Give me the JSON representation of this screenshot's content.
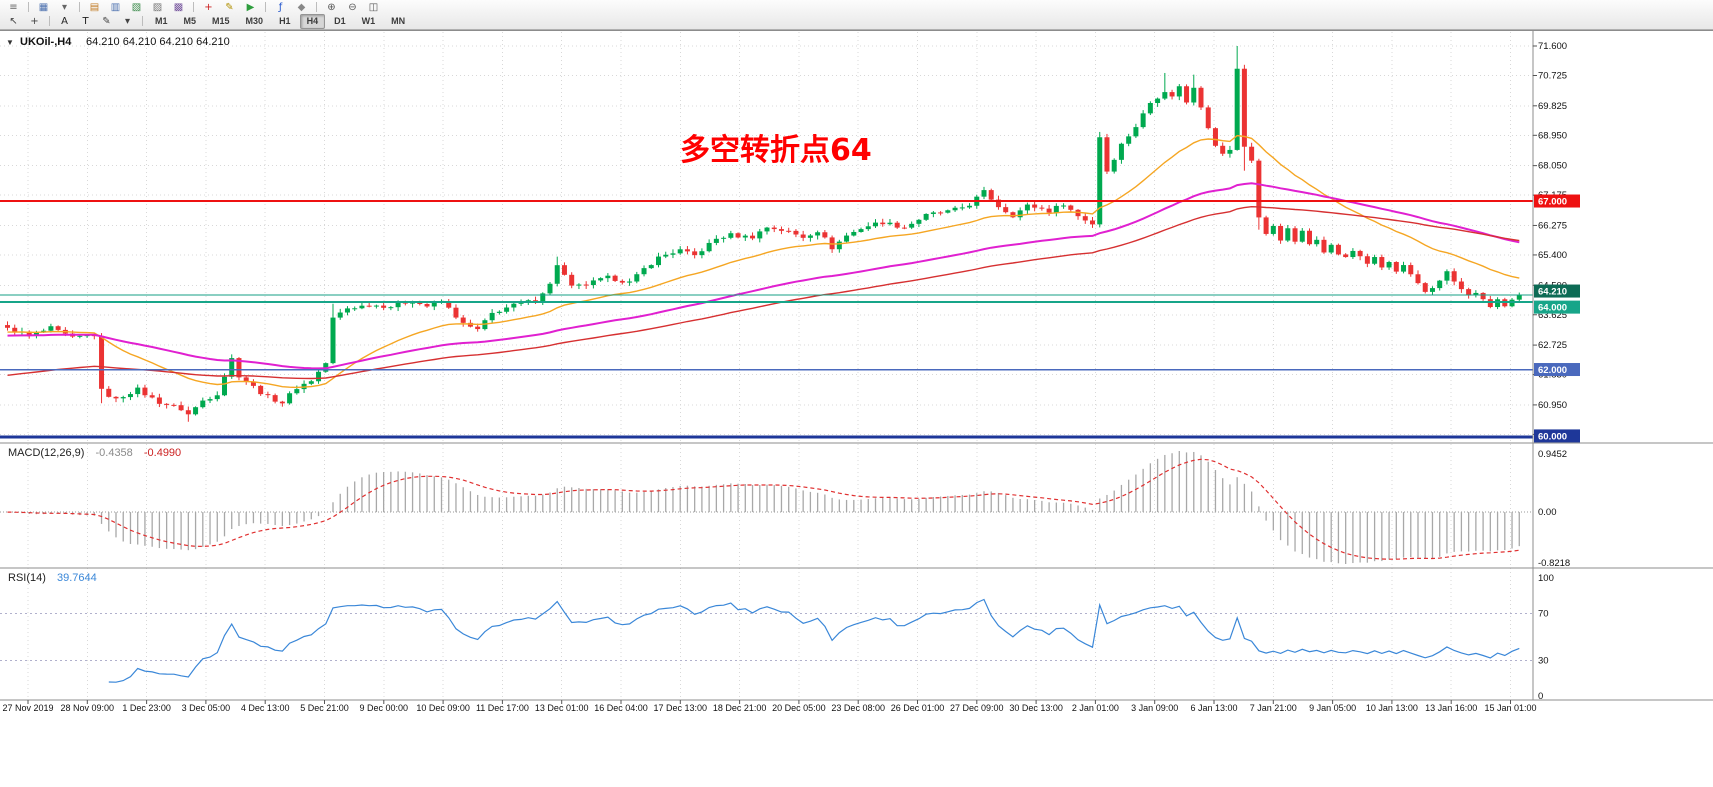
{
  "toolbar": {
    "row1_icons": [
      {
        "name": "menu-icon",
        "glyph": "≡",
        "color": "#666"
      },
      {
        "sep": true
      },
      {
        "name": "new-chart-icon",
        "glyph": "▦",
        "color": "#4a6fae"
      },
      {
        "name": "profiles-dropdown-icon",
        "glyph": "▾",
        "color": "#666"
      },
      {
        "sep": true
      },
      {
        "name": "market-watch-icon",
        "glyph": "▤",
        "color": "#c07820"
      },
      {
        "name": "data-window-icon",
        "glyph": "▥",
        "color": "#4a6fae"
      },
      {
        "name": "navigator-icon",
        "glyph": "▧",
        "color": "#3a8a4a"
      },
      {
        "name": "terminal-icon",
        "glyph": "▨",
        "color": "#777"
      },
      {
        "name": "strategy-tester-icon",
        "glyph": "▩",
        "color": "#7a5aa0"
      },
      {
        "sep": true
      },
      {
        "name": "new-order-icon",
        "glyph": "+",
        "color": "#cc2222"
      },
      {
        "name": "metaeditor-icon",
        "glyph": "✎",
        "color": "#b09000"
      },
      {
        "name": "autotrading-icon",
        "glyph": "▶",
        "color": "#2e9e3e"
      },
      {
        "sep": true
      },
      {
        "name": "add-indicator-icon",
        "glyph": "ƒ",
        "color": "#2255cc"
      },
      {
        "name": "objects-list-icon",
        "glyph": "◆",
        "color": "#888"
      },
      {
        "sep": true
      },
      {
        "name": "zoom-in-icon",
        "glyph": "⊕",
        "color": "#555"
      },
      {
        "name": "zoom-out-icon",
        "glyph": "⊖",
        "color": "#555"
      },
      {
        "name": "tile-windows-icon",
        "glyph": "◫",
        "color": "#555"
      }
    ],
    "row2_tools": [
      {
        "name": "cursor-icon",
        "glyph": "↖",
        "color": "#444"
      },
      {
        "name": "crosshair-icon",
        "glyph": "+",
        "color": "#444"
      },
      {
        "sep": true
      },
      {
        "name": "text-tool-button",
        "glyph": "A",
        "color": "#222"
      },
      {
        "name": "text-label-tool-button",
        "glyph": "T",
        "color": "#222"
      },
      {
        "name": "draw-tools-icon",
        "glyph": "✎",
        "color": "#444"
      },
      {
        "name": "draw-tools-dropdown-icon",
        "glyph": "▾",
        "color": "#444"
      },
      {
        "sep": true
      }
    ],
    "timeframes": {
      "items": [
        "M1",
        "M5",
        "M15",
        "M30",
        "H1",
        "H4",
        "D1",
        "W1",
        "MN"
      ],
      "active": "H4"
    }
  },
  "chart": {
    "title": {
      "collapse_glyph": "▼",
      "symbol": "UKOil-,H4",
      "ohlc": "64.210 64.210 64.210 64.210"
    },
    "annotation": {
      "text": "多空转折点64",
      "color": "#FF0000"
    },
    "colors": {
      "up": "#00a94f",
      "down": "#eb3333",
      "grid": "#d8d8d8",
      "separator": "#8c8c8c",
      "axis_text": "#111111"
    },
    "price_axis": {
      "tick_values": [
        71.6,
        70.725,
        69.825,
        68.95,
        68.05,
        67.175,
        66.275,
        65.4,
        64.5,
        63.625,
        62.725,
        61.85,
        60.95,
        60.075
      ]
    },
    "time_axis": {
      "labels": [
        "27 Nov 2019",
        "28 Nov 09:00",
        "1 Dec 23:00",
        "3 Dec 05:00",
        "4 Dec 13:00",
        "5 Dec 21:00",
        "9 Dec 00:00",
        "10 Dec 09:00",
        "11 Dec 17:00",
        "13 Dec 01:00",
        "16 Dec 04:00",
        "17 Dec 13:00",
        "18 Dec 21:00",
        "20 Dec 05:00",
        "23 Dec 08:00",
        "26 Dec 01:00",
        "27 Dec 09:00",
        "30 Dec 13:00",
        "2 Jan 01:00",
        "3 Jan 09:00",
        "6 Jan 13:00",
        "7 Jan 21:00",
        "9 Jan 05:00",
        "10 Jan 13:00",
        "13 Jan 16:00",
        "15 Jan 01:00"
      ]
    },
    "hlines": [
      {
        "name": "resistance-line-67",
        "price": 67.0,
        "label": "67.000",
        "color": "#ee1111",
        "width": 2,
        "tag_color": "#ee1111",
        "tag_dy": 0
      },
      {
        "name": "current-price-line",
        "price": 64.21,
        "label": "64.210",
        "color": "#159f85",
        "width": 1,
        "tag_color": "#0d6b55",
        "tag_dy": -4
      },
      {
        "name": "pivot-line-64",
        "price": 64.0,
        "label": "64.000",
        "color": "#17a589",
        "width": 2,
        "tag_color": "#17a589",
        "tag_dy": 5
      },
      {
        "name": "support-line-62",
        "price": 62.0,
        "label": "62.000",
        "color": "#4a69bd",
        "width": 1.5,
        "tag_color": "#4a69bd",
        "tag_dy": 0
      },
      {
        "name": "support-line-60",
        "price": 60.0,
        "label": "60.000",
        "color": "#1e3799",
        "width": 3,
        "tag_color": "#1e3799",
        "tag_dy": -1
      }
    ]
  },
  "macd_panel": {
    "label": "MACD(12,26,9)",
    "value_main": "-0.4358",
    "value_signal": "-0.4990",
    "scale": [
      "0.9452",
      "0.00",
      "-0.8218"
    ]
  },
  "rsi_panel": {
    "label": "RSI(14)",
    "value": "39.7644",
    "scale": [
      "100",
      "70",
      "30",
      "0"
    ],
    "scale_values": [
      100,
      70,
      30,
      0
    ],
    "levels": [
      70,
      30
    ]
  },
  "chart_data": {
    "type": "candlestick",
    "symbol": "UKOil-",
    "timeframe": "H4",
    "price_range": [
      60.075,
      71.6
    ],
    "candles": {
      "count": 210,
      "last_close": 64.21,
      "noise_amplitude": 0.12,
      "close_waypoints": [
        [
          0,
          63.2
        ],
        [
          3,
          63
        ],
        [
          6,
          63.25
        ],
        [
          9,
          62.9
        ],
        [
          12,
          63.05
        ],
        [
          13,
          61.4
        ],
        [
          15,
          61.1
        ],
        [
          18,
          61.4
        ],
        [
          21,
          61.05
        ],
        [
          24,
          60.8
        ],
        [
          25,
          60.65
        ],
        [
          27,
          61.1
        ],
        [
          29,
          61.3
        ],
        [
          31,
          62.3
        ],
        [
          32,
          61.8
        ],
        [
          34,
          61.5
        ],
        [
          36,
          61.2
        ],
        [
          38,
          61
        ],
        [
          40,
          61.45
        ],
        [
          42,
          61.7
        ],
        [
          44,
          62.2
        ],
        [
          45,
          63.5
        ],
        [
          47,
          63.8
        ],
        [
          50,
          63.95
        ],
        [
          53,
          63.85
        ],
        [
          56,
          64.05
        ],
        [
          58,
          63.9
        ],
        [
          60,
          64
        ],
        [
          63,
          63.35
        ],
        [
          65,
          63.2
        ],
        [
          67,
          63.65
        ],
        [
          70,
          63.9
        ],
        [
          73,
          64.1
        ],
        [
          75,
          64.5
        ],
        [
          76,
          65.1
        ],
        [
          78,
          64.45
        ],
        [
          80,
          64.55
        ],
        [
          83,
          64.7
        ],
        [
          86,
          64.6
        ],
        [
          88,
          65
        ],
        [
          90,
          65.3
        ],
        [
          93,
          65.55
        ],
        [
          95,
          65.4
        ],
        [
          98,
          65.85
        ],
        [
          100,
          66
        ],
        [
          103,
          65.95
        ],
        [
          105,
          66.2
        ],
        [
          108,
          66.1
        ],
        [
          110,
          65.95
        ],
        [
          112,
          66.1
        ],
        [
          114,
          65.6
        ],
        [
          116,
          66
        ],
        [
          118,
          66.2
        ],
        [
          121,
          66.35
        ],
        [
          124,
          66.25
        ],
        [
          127,
          66.55
        ],
        [
          130,
          66.7
        ],
        [
          133,
          66.9
        ],
        [
          135,
          67.25
        ],
        [
          137,
          66.85
        ],
        [
          139,
          66.6
        ],
        [
          141,
          66.85
        ],
        [
          144,
          66.7
        ],
        [
          146,
          66.95
        ],
        [
          148,
          66.55
        ],
        [
          150,
          66.3
        ],
        [
          151,
          68.9
        ],
        [
          152,
          67.9
        ],
        [
          153,
          68.3
        ],
        [
          154,
          68.7
        ],
        [
          156,
          69.2
        ],
        [
          158,
          69.9
        ],
        [
          160,
          70.3
        ],
        [
          161,
          70.1
        ],
        [
          162,
          70.45
        ],
        [
          163,
          69.9
        ],
        [
          164,
          70.35
        ],
        [
          165,
          69.8
        ],
        [
          166,
          69.2
        ],
        [
          167,
          68.7
        ],
        [
          168,
          68.4
        ],
        [
          169,
          68.55
        ],
        [
          170,
          70.9
        ],
        [
          171,
          68.6
        ],
        [
          172,
          68.2
        ],
        [
          173,
          66.5
        ],
        [
          174,
          66
        ],
        [
          175,
          66.3
        ],
        [
          176,
          65.9
        ],
        [
          177,
          66.15
        ],
        [
          178,
          65.8
        ],
        [
          179,
          66.05
        ],
        [
          180,
          65.7
        ],
        [
          181,
          65.9
        ],
        [
          182,
          65.55
        ],
        [
          183,
          65.7
        ],
        [
          184,
          65.45
        ],
        [
          185,
          65.3
        ],
        [
          186,
          65.5
        ],
        [
          187,
          65.35
        ],
        [
          188,
          65.15
        ],
        [
          189,
          65.3
        ],
        [
          190,
          65.05
        ],
        [
          191,
          65.2
        ],
        [
          192,
          64.9
        ],
        [
          193,
          65.05
        ],
        [
          194,
          64.75
        ],
        [
          195,
          64.5
        ],
        [
          196,
          64.3
        ],
        [
          197,
          64.45
        ],
        [
          198,
          64.7
        ],
        [
          199,
          64.9
        ],
        [
          200,
          64.6
        ],
        [
          201,
          64.35
        ],
        [
          202,
          64.15
        ],
        [
          203,
          64.3
        ],
        [
          204,
          64.05
        ],
        [
          205,
          63.9
        ],
        [
          206,
          64.1
        ],
        [
          207,
          63.85
        ],
        [
          208,
          64
        ],
        [
          209,
          64.21
        ]
      ],
      "wick_overrides": {
        "13": {
          "low": 61.0
        },
        "25": {
          "low": 60.45
        },
        "45": {
          "high": 63.95
        },
        "76": {
          "high": 65.35
        },
        "135": {
          "high": 67.42
        },
        "151": {
          "high": 69.05
        },
        "160": {
          "high": 70.8
        },
        "164": {
          "high": 70.75
        },
        "170": {
          "high": 71.6
        },
        "171": {
          "low": 67.9
        },
        "173": {
          "low": 66.15
        }
      },
      "up_color": "#00a94f",
      "down_color": "#eb3333"
    },
    "moving_averages": [
      {
        "name": "ma-fast-orange",
        "period": 24,
        "seed": 63.1,
        "color": "#f5a623",
        "width": 1.4
      },
      {
        "name": "ma-mid-magenta",
        "period": 70,
        "seed": 63.0,
        "color": "#e020d0",
        "width": 2
      },
      {
        "name": "ma-slow-red",
        "period": 100,
        "seed": 61.8,
        "color": "#d63031",
        "width": 1.4
      }
    ],
    "macd": {
      "fast": 12,
      "slow": 26,
      "signal": 9,
      "histogram_color": "#a8a8a8",
      "signal_color": "#e03030",
      "displayed_main": -0.4358,
      "displayed_signal": -0.499,
      "scale_max": 0.9452,
      "scale_min": -0.8218
    },
    "rsi": {
      "period": 14,
      "color": "#3a87d8",
      "levels": [
        70,
        30
      ],
      "displayed_value": 39.7644,
      "range": [
        0,
        100
      ]
    }
  }
}
